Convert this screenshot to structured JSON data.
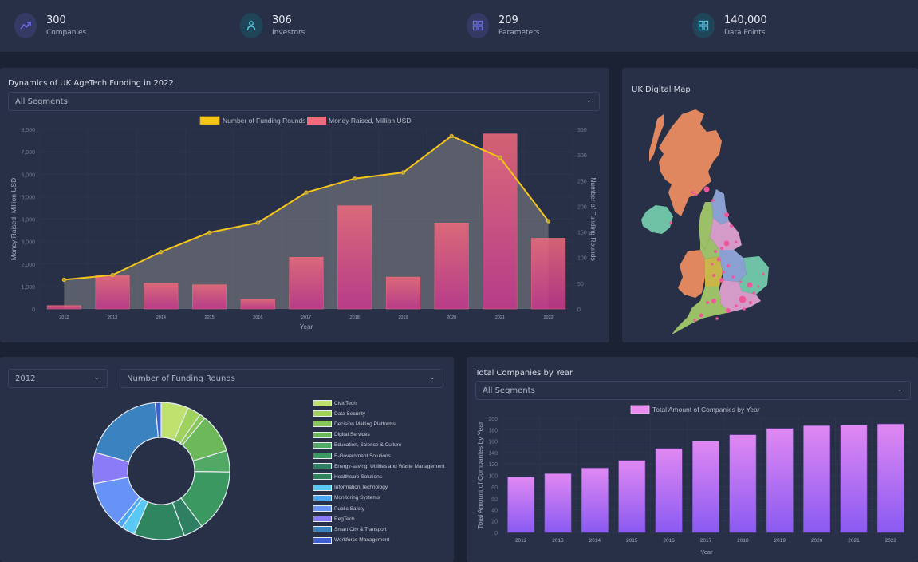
{
  "stats": [
    {
      "value": "300",
      "label": "Companies",
      "icon": "trending-up-icon",
      "icon_color": "#6b6ee8",
      "bg": "#343a63"
    },
    {
      "value": "306",
      "label": "Investors",
      "icon": "user-icon",
      "icon_color": "#4fc3d9",
      "bg": "#1f4559"
    },
    {
      "value": "209",
      "label": "Parameters",
      "icon": "grid-icon",
      "icon_color": "#6b6ee8",
      "bg": "#343a63"
    },
    {
      "value": "140,000",
      "label": "Data Points",
      "icon": "grid-icon",
      "icon_color": "#4fc3d9",
      "bg": "#1f4559"
    }
  ],
  "funding": {
    "title": "Dynamics of UK AgeTech Funding in 2022",
    "segment_select": "All Segments",
    "chevron": "⌄"
  },
  "map": {
    "title": "UK Digital Map"
  },
  "breakdown": {
    "year_select": "2012",
    "metric_select": "Number of Funding Rounds"
  },
  "companies": {
    "title": "Total Companies by Year",
    "segment_select": "All Segments"
  },
  "chart_data": [
    {
      "type": "bar",
      "title": "Dynamics of UK AgeTech Funding in 2022",
      "categories": [
        "2012",
        "2013",
        "2014",
        "2015",
        "2016",
        "2017",
        "2018",
        "2019",
        "2020",
        "2021",
        "2022"
      ],
      "series": [
        {
          "name": "Number of Funding Rounds",
          "type": "line",
          "axis": "right",
          "color": "#f5c518",
          "values": [
            57,
            66,
            111,
            149,
            168,
            227,
            254,
            266,
            337,
            295,
            171
          ]
        },
        {
          "name": "Money Raised, Million USD",
          "type": "bar",
          "axis": "left",
          "color": "#f06b7c",
          "values": [
            150,
            1500,
            1150,
            1080,
            430,
            2300,
            4600,
            1420,
            3830,
            7800,
            3150
          ]
        }
      ],
      "xlabel": "Year",
      "ylabel": "Money Raised, Million USD",
      "y2label": "Number of Funding Rounds",
      "ylim": [
        0,
        8000
      ],
      "y2lim": [
        0,
        350
      ],
      "yticks": [
        "0",
        "1,000",
        "2,000",
        "3,000",
        "4,000",
        "5,000",
        "6,000",
        "7,000",
        "8,000"
      ],
      "y2ticks": [
        "0",
        "50",
        "100",
        "150",
        "200",
        "250",
        "300",
        "350"
      ],
      "legend": "top",
      "grid": true
    },
    {
      "type": "pie",
      "title": "Number of Funding Rounds 2012",
      "donut": true,
      "labels": [
        "CivicTech",
        "Data Security",
        "Decision Making Platforms",
        "Digital Services",
        "Education, Science & Culture",
        "E-Government Solutions",
        "Energy-saving, Utilities and Waste Management",
        "Healthcare Solutions",
        "Information Technology",
        "Monitoring Systems",
        "Public Safety",
        "RegTech",
        "Smart City & Transport",
        "Workforce Management"
      ],
      "values": [
        7,
        3.5,
        1.5,
        10,
        5.5,
        16,
        5,
        13,
        3.5,
        1.5,
        12,
        8,
        21,
        1.5
      ],
      "colors": [
        "#bfe26f",
        "#9fd15e",
        "#88c65a",
        "#6cb85a",
        "#52a865",
        "#3a9860",
        "#2f8063",
        "#2e8560",
        "#5ac8f5",
        "#4aa6f0",
        "#6693f5",
        "#8a7bf7",
        "#3a82c0",
        "#3d5fd0"
      ],
      "legend": "right"
    },
    {
      "type": "bar",
      "title": "Total Companies by Year",
      "categories": [
        "2012",
        "2013",
        "2014",
        "2015",
        "2016",
        "2017",
        "2018",
        "2019",
        "2020",
        "2021",
        "2022"
      ],
      "series": [
        {
          "name": "Total Amount of Companies by Year",
          "values": [
            97,
            103,
            113,
            126,
            147,
            160,
            171,
            182,
            187,
            188,
            190
          ]
        }
      ],
      "xlabel": "Year",
      "ylabel": "Total Amount of Companies by Year",
      "ylim": [
        0,
        200
      ],
      "yticks": [
        "0",
        "20",
        "40",
        "60",
        "80",
        "100",
        "120",
        "140",
        "160",
        "180",
        "200"
      ],
      "legend": "top",
      "grid": true
    }
  ]
}
